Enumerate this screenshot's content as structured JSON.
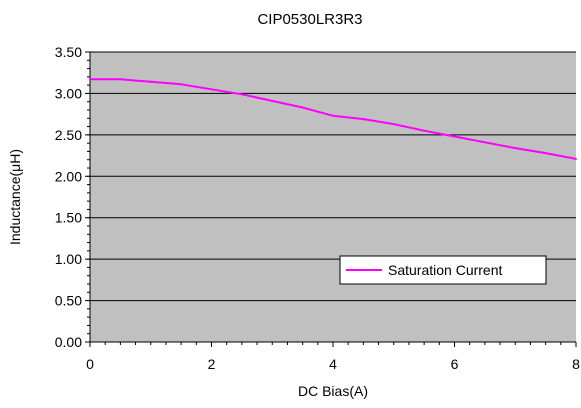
{
  "chart_data": {
    "type": "line",
    "title": "CIP0530LR3R3",
    "xlabel": "DC Bias(A)",
    "ylabel": "Inductance(μH)",
    "xlim": [
      0,
      8
    ],
    "ylim": [
      0,
      3.5
    ],
    "x_ticks": [
      "0",
      "2",
      "4",
      "6",
      "8"
    ],
    "y_ticks": [
      "0.00",
      "0.50",
      "1.00",
      "1.50",
      "2.00",
      "2.50",
      "3.00",
      "3.50"
    ],
    "grid": "horizontal",
    "legend_position": "bottom-right",
    "plot_background": "#c0c0c0",
    "series": [
      {
        "name": "Saturation Current",
        "color": "#ff00ff",
        "x": [
          0,
          0.5,
          1.0,
          1.5,
          2.0,
          2.5,
          3.0,
          3.5,
          4.0,
          4.5,
          5.0,
          5.5,
          6.0,
          6.5,
          7.0,
          7.5,
          8.0
        ],
        "y": [
          3.17,
          3.17,
          3.14,
          3.11,
          3.05,
          2.99,
          2.91,
          2.83,
          2.73,
          2.69,
          2.63,
          2.55,
          2.48,
          2.41,
          2.34,
          2.28,
          2.21
        ]
      }
    ]
  }
}
